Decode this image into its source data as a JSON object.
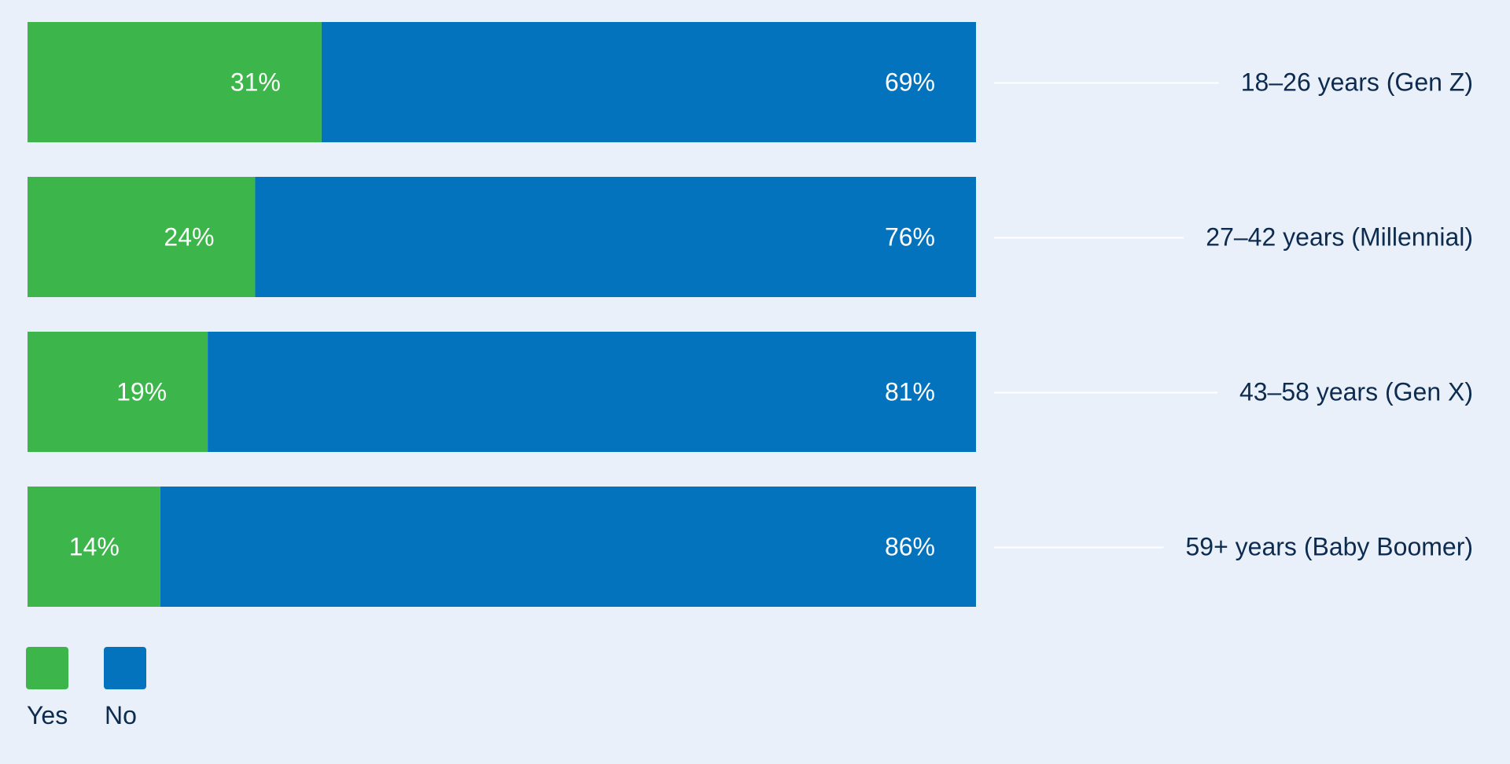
{
  "chart_data": {
    "type": "bar",
    "orientation": "horizontal",
    "stacked": true,
    "categories": [
      "18–26 years (Gen Z)",
      "27–42 years (Millennial)",
      "43–58 years (Gen X)",
      "59+ years (Baby Boomer)"
    ],
    "series": [
      {
        "name": "Yes",
        "color": "#3CB54A",
        "values": [
          31,
          24,
          19,
          14
        ],
        "labels": [
          "31%",
          "24%",
          "19%",
          "14%"
        ]
      },
      {
        "name": "No",
        "color": "#0373BD",
        "values": [
          69,
          76,
          81,
          86
        ],
        "labels": [
          "69%",
          "76%",
          "81%",
          "86%"
        ]
      }
    ],
    "xlim": [
      0,
      100
    ],
    "unit": "%",
    "legend_position": "bottom-left",
    "category_label_position": "right",
    "grid": false
  },
  "colors": {
    "background": "#E9F0F9",
    "text": "#0D2B4F",
    "connector": "#FFFFFF"
  }
}
